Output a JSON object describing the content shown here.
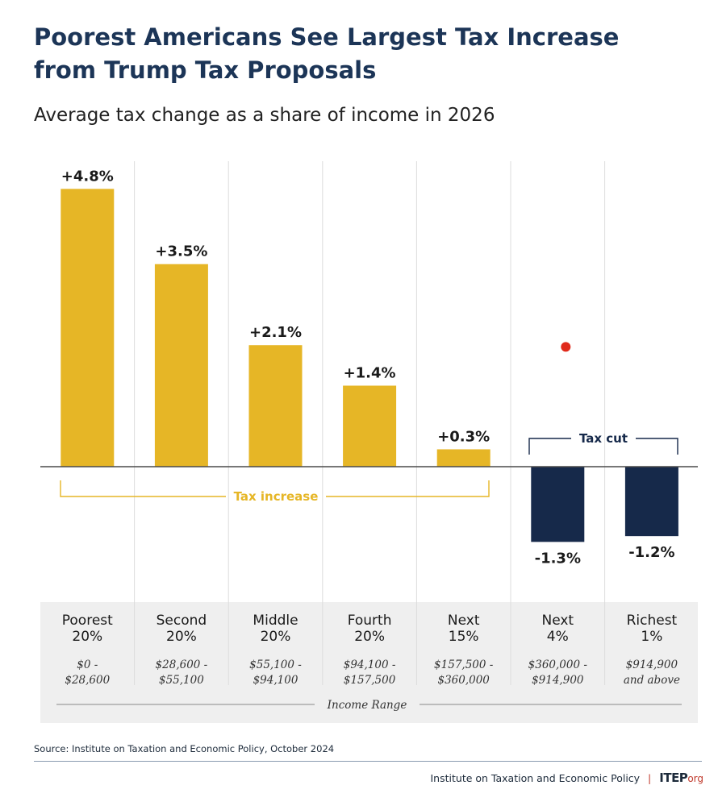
{
  "header": {
    "title_lines": [
      "Poorest Americans See Largest Tax Increase",
      "from Trump Tax Proposals"
    ],
    "subtitle": "Average tax change as a share of income in 2026"
  },
  "chart_data": {
    "type": "bar",
    "ylabel": "",
    "unit": "%",
    "categories": [
      {
        "group": "Poorest",
        "pct": "20%",
        "range": [
          "$0 -",
          "$28,600"
        ]
      },
      {
        "group": "Second",
        "pct": "20%",
        "range": [
          "$28,600 -",
          "$55,100"
        ]
      },
      {
        "group": "Middle",
        "pct": "20%",
        "range": [
          "$55,100 -",
          "$94,100"
        ]
      },
      {
        "group": "Fourth",
        "pct": "20%",
        "range": [
          "$94,100 -",
          "$157,500"
        ]
      },
      {
        "group": "Next",
        "pct": "15%",
        "range": [
          "$157,500 -",
          "$360,000"
        ]
      },
      {
        "group": "Next",
        "pct": "4%",
        "range": [
          "$360,000 -",
          "$914,900"
        ]
      },
      {
        "group": "Richest",
        "pct": "1%",
        "range": [
          "$914,900",
          "and above"
        ]
      }
    ],
    "values": [
      4.8,
      3.5,
      2.1,
      1.4,
      0.3,
      -1.3,
      -1.2
    ],
    "value_labels": [
      "+4.8%",
      "+3.5%",
      "+2.1%",
      "+1.4%",
      "+0.3%",
      "-1.3%",
      "-1.2%"
    ],
    "annotations": {
      "increase_label": "Tax increase",
      "cut_label": "Tax cut",
      "axis_caption": "Income Range"
    },
    "colors": {
      "increase": "#e6b626",
      "cut": "#16294a",
      "marker": "#e02a1b"
    },
    "marker": {
      "category_index": 5,
      "value": 2.07
    },
    "grid": "vertical separators",
    "legend": "none"
  },
  "footer": {
    "source": "Source: Institute on Taxation and Economic Policy, October 2024",
    "org": "Institute on Taxation and Economic Policy",
    "logo": "ITEP",
    "logo_suffix": "org"
  }
}
